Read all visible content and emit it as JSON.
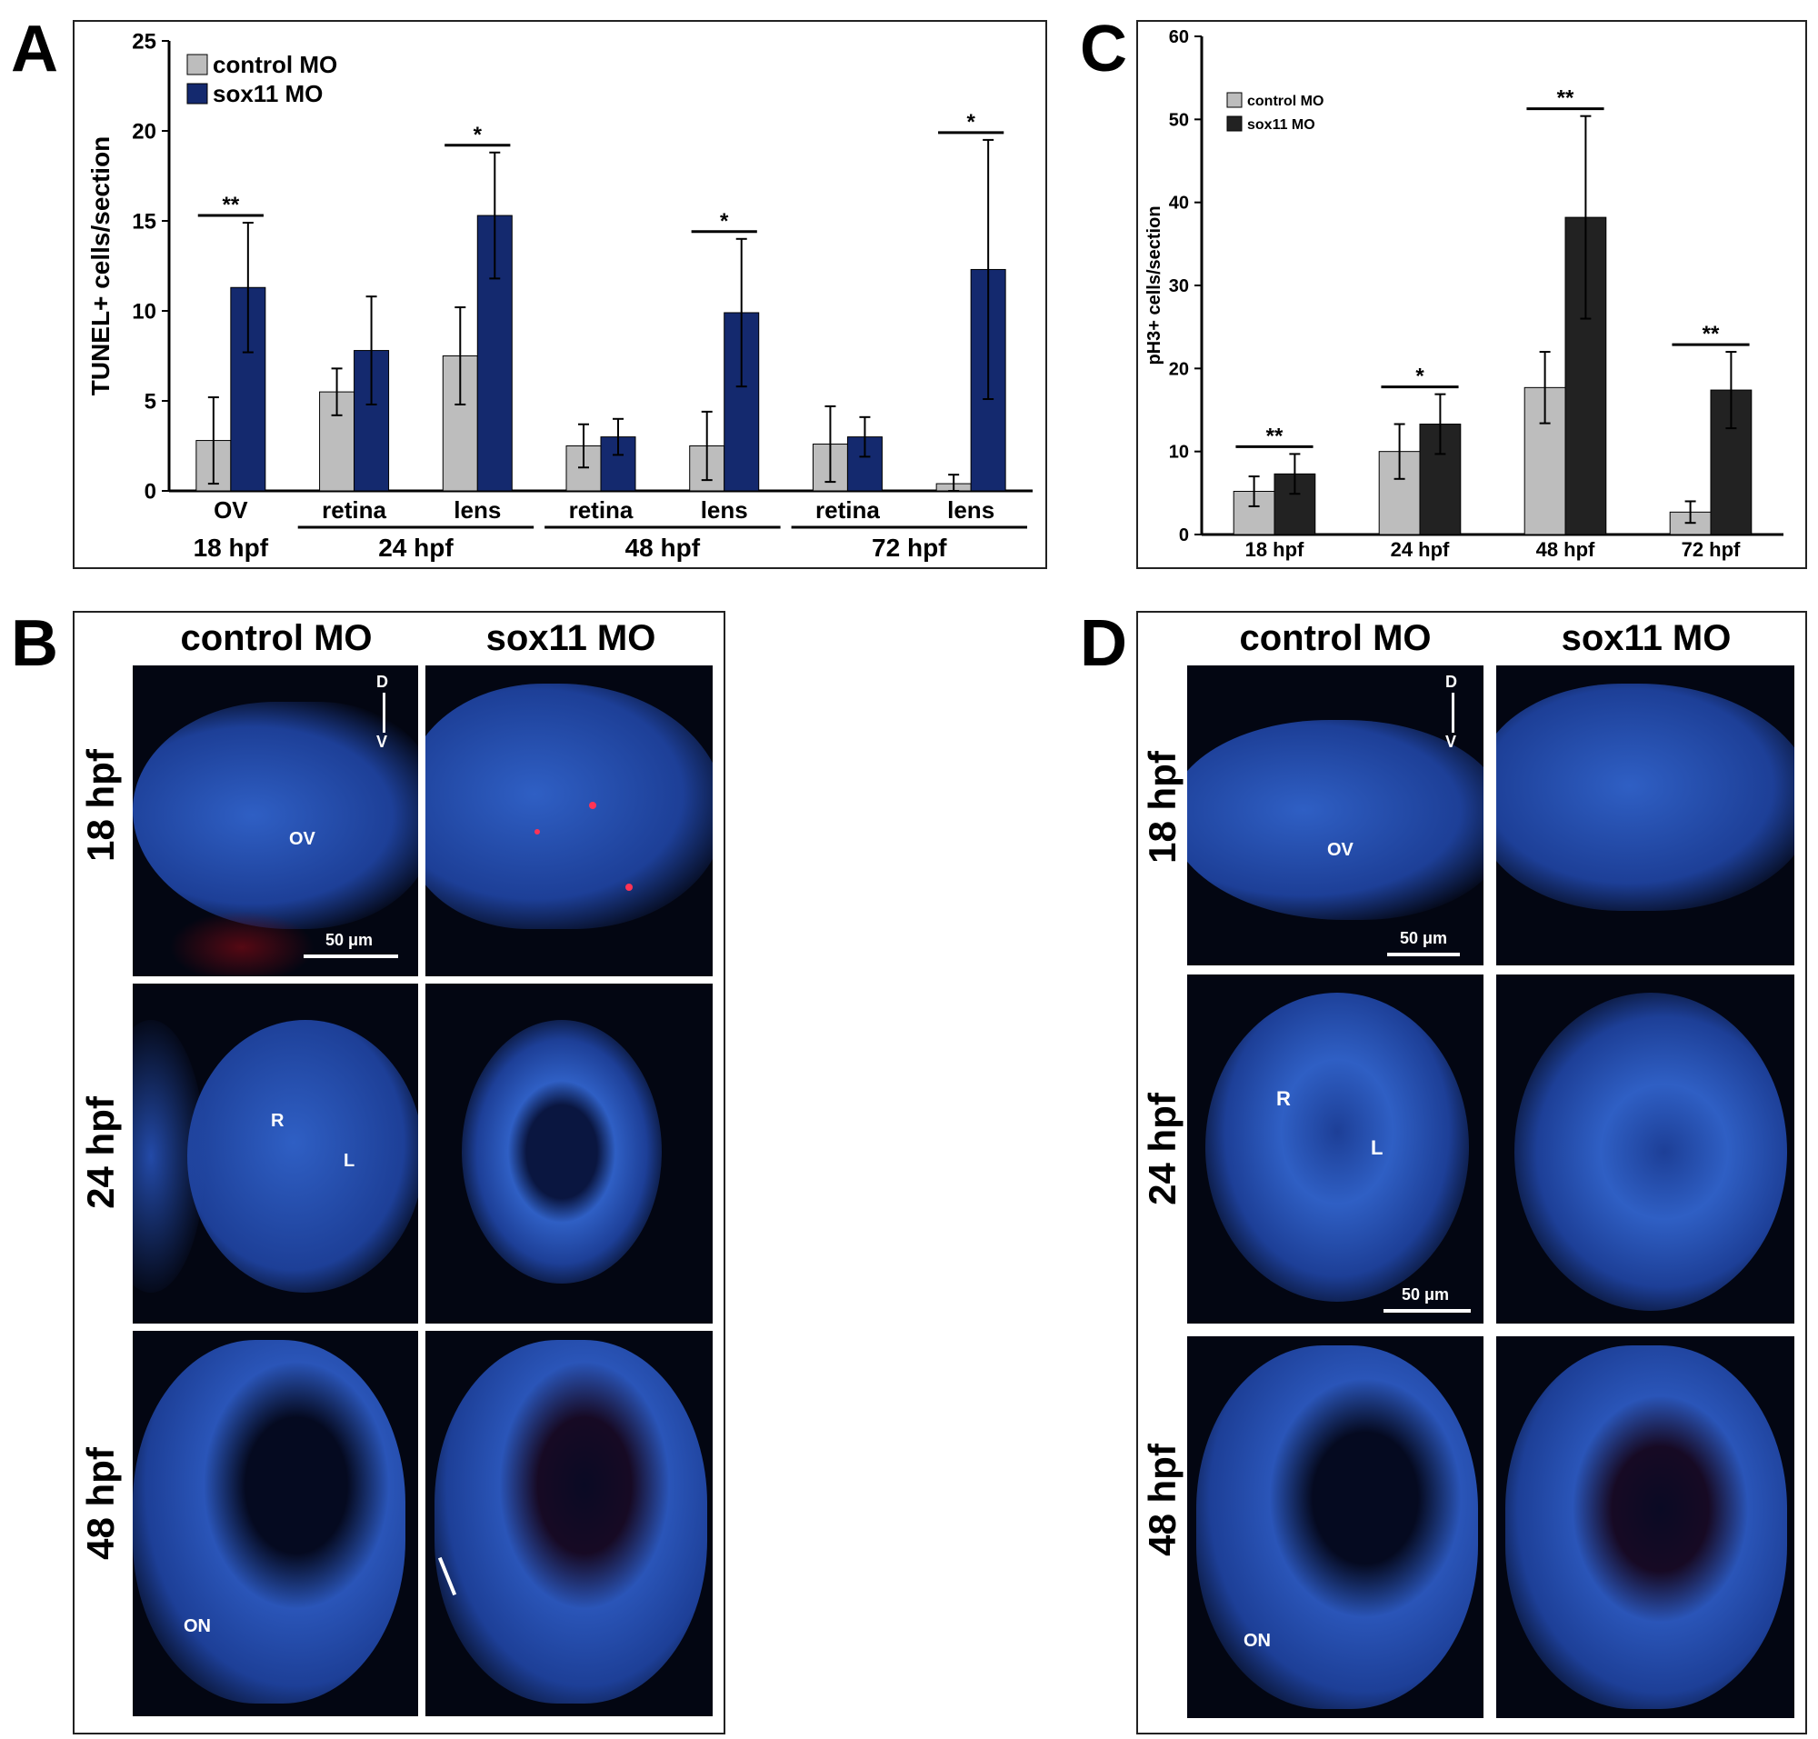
{
  "panels": {
    "a": {
      "letter": "A",
      "chart_data": {
        "type": "bar",
        "title": "",
        "ylabel": "TUNEL+ cells/section",
        "ylim": [
          0,
          25
        ],
        "yticks": [
          0,
          5,
          10,
          15,
          20,
          25
        ],
        "categories": [
          "OV",
          "retina",
          "lens",
          "retina",
          "lens",
          "retina",
          "lens"
        ],
        "groups": [
          {
            "label": "18 hpf",
            "categories": [
              0
            ]
          },
          {
            "label": "24 hpf",
            "categories": [
              1,
              2
            ]
          },
          {
            "label": "48 hpf",
            "categories": [
              3,
              4
            ]
          },
          {
            "label": "72 hpf",
            "categories": [
              5,
              6
            ]
          }
        ],
        "series": [
          {
            "name": "control MO",
            "color": "#bdbdbd",
            "values": [
              2.8,
              5.5,
              7.5,
              2.5,
              2.5,
              2.6,
              0.4
            ],
            "errors": [
              2.4,
              1.3,
              2.7,
              1.2,
              1.9,
              2.1,
              0.5
            ]
          },
          {
            "name": "sox11 MO",
            "color": "#14296e",
            "values": [
              11.3,
              7.8,
              15.3,
              3.0,
              9.9,
              3.0,
              12.3
            ],
            "errors": [
              3.6,
              3.0,
              3.5,
              1.0,
              4.1,
              1.1,
              7.2
            ]
          }
        ],
        "significance": [
          {
            "category": 0,
            "label": "**"
          },
          {
            "category": 2,
            "label": "*"
          },
          {
            "category": 4,
            "label": "*"
          },
          {
            "category": 6,
            "label": "*"
          }
        ],
        "legend": "top-left",
        "grid": false
      }
    },
    "c": {
      "letter": "C",
      "chart_data": {
        "type": "bar",
        "title": "",
        "ylabel": "pH3+ cells/section",
        "ylim": [
          0,
          60
        ],
        "yticks": [
          0,
          10,
          20,
          30,
          40,
          50,
          60
        ],
        "categories": [
          "18 hpf",
          "24 hpf",
          "48 hpf",
          "72 hpf"
        ],
        "series": [
          {
            "name": "control MO",
            "color": "#bdbdbd",
            "values": [
              5.2,
              10.0,
              17.7,
              2.7
            ],
            "errors": [
              1.8,
              3.3,
              4.3,
              1.3
            ]
          },
          {
            "name": "sox11 MO",
            "color": "#222222",
            "values": [
              7.3,
              13.3,
              38.2,
              17.4
            ],
            "errors": [
              2.4,
              3.6,
              12.2,
              4.6
            ]
          }
        ],
        "significance": [
          {
            "category": 0,
            "label": "**"
          },
          {
            "category": 1,
            "label": "*"
          },
          {
            "category": 2,
            "label": "**"
          },
          {
            "category": 3,
            "label": "**"
          }
        ],
        "legend": "top-left",
        "grid": false
      }
    },
    "b": {
      "letter": "B",
      "columns": [
        "control MO",
        "sox11 MO"
      ],
      "rows": [
        "18 hpf",
        "24 hpf",
        "48 hpf"
      ],
      "labels": {
        "ov": "OV",
        "r": "R",
        "l": "L",
        "on": "ON",
        "d": "D",
        "v": "V",
        "scale": "50 μm"
      }
    },
    "d": {
      "letter": "D",
      "columns": [
        "control MO",
        "sox11 MO"
      ],
      "rows": [
        "18 hpf",
        "24 hpf",
        "48 hpf"
      ],
      "labels": {
        "ov": "OV",
        "r": "R",
        "l": "L",
        "on": "ON",
        "d": "D",
        "v": "V",
        "scale": "50 μm",
        "scale2": "50 μm"
      }
    }
  }
}
